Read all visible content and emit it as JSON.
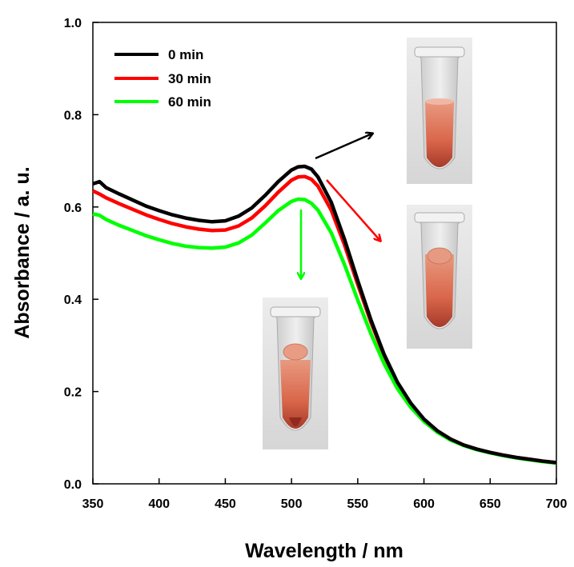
{
  "chart_data": {
    "type": "line",
    "xlabel": "Wavelength / nm",
    "ylabel": "Absorbance / a. u.",
    "xlim": [
      350,
      700
    ],
    "ylim": [
      0.0,
      1.0
    ],
    "xticks": [
      "350",
      "400",
      "450",
      "500",
      "550",
      "600",
      "650",
      "700"
    ],
    "yticks": [
      "0.0",
      "0.2",
      "0.4",
      "0.6",
      "0.8",
      "1.0"
    ],
    "grid": false,
    "legend_position": "top-left",
    "series": [
      {
        "name": "0 min",
        "color": "#000000",
        "x": [
          350,
          355,
          360,
          370,
          380,
          390,
          400,
          410,
          420,
          430,
          440,
          450,
          460,
          470,
          480,
          490,
          500,
          505,
          510,
          515,
          520,
          530,
          540,
          550,
          560,
          570,
          580,
          590,
          600,
          610,
          620,
          630,
          640,
          650,
          660,
          670,
          680,
          690,
          700
        ],
        "y": [
          0.65,
          0.655,
          0.642,
          0.628,
          0.615,
          0.602,
          0.592,
          0.583,
          0.576,
          0.571,
          0.568,
          0.57,
          0.58,
          0.598,
          0.625,
          0.655,
          0.68,
          0.687,
          0.688,
          0.682,
          0.665,
          0.61,
          0.53,
          0.44,
          0.355,
          0.28,
          0.22,
          0.175,
          0.14,
          0.115,
          0.097,
          0.084,
          0.075,
          0.068,
          0.062,
          0.057,
          0.053,
          0.049,
          0.046
        ]
      },
      {
        "name": "30 min",
        "color": "#ff0000",
        "x": [
          350,
          355,
          360,
          370,
          380,
          390,
          400,
          410,
          420,
          430,
          440,
          450,
          460,
          470,
          480,
          490,
          500,
          505,
          510,
          515,
          520,
          530,
          540,
          550,
          560,
          570,
          580,
          590,
          600,
          610,
          620,
          630,
          640,
          650,
          660,
          670,
          680,
          690,
          700
        ],
        "y": [
          0.635,
          0.628,
          0.62,
          0.607,
          0.595,
          0.583,
          0.573,
          0.564,
          0.557,
          0.552,
          0.549,
          0.55,
          0.559,
          0.576,
          0.602,
          0.632,
          0.658,
          0.665,
          0.666,
          0.66,
          0.645,
          0.593,
          0.518,
          0.432,
          0.35,
          0.277,
          0.218,
          0.174,
          0.14,
          0.115,
          0.097,
          0.084,
          0.075,
          0.068,
          0.062,
          0.057,
          0.053,
          0.049,
          0.046
        ]
      },
      {
        "name": "60 min",
        "color": "#00ff00",
        "x": [
          350,
          355,
          360,
          370,
          380,
          390,
          400,
          410,
          420,
          430,
          440,
          450,
          460,
          470,
          480,
          490,
          500,
          505,
          510,
          515,
          520,
          530,
          540,
          550,
          560,
          570,
          580,
          590,
          600,
          610,
          620,
          630,
          640,
          650,
          660,
          670,
          680,
          690,
          700
        ],
        "y": [
          0.585,
          0.582,
          0.573,
          0.56,
          0.549,
          0.538,
          0.529,
          0.521,
          0.515,
          0.512,
          0.511,
          0.513,
          0.522,
          0.539,
          0.565,
          0.592,
          0.612,
          0.617,
          0.616,
          0.608,
          0.593,
          0.544,
          0.475,
          0.398,
          0.325,
          0.26,
          0.206,
          0.166,
          0.135,
          0.112,
          0.095,
          0.083,
          0.074,
          0.067,
          0.061,
          0.056,
          0.052,
          0.048,
          0.045
        ]
      }
    ],
    "annotations": [
      {
        "name": "arrow-0min",
        "color": "#000000"
      },
      {
        "name": "arrow-30min",
        "color": "#ff0000"
      },
      {
        "name": "arrow-60min",
        "color": "#00ff00"
      }
    ]
  }
}
